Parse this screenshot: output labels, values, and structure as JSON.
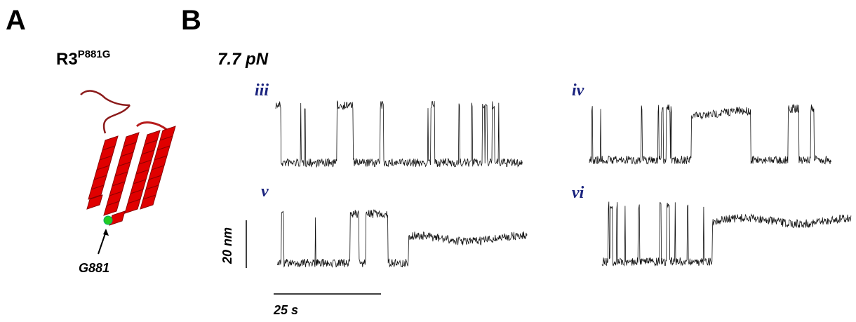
{
  "panel_a": {
    "label": "A",
    "protein": "R3",
    "mutation": "P881G",
    "residue": "G881"
  },
  "panel_b": {
    "label": "B",
    "force": "7.7 pN",
    "trace_labels": [
      "iii",
      "iv",
      "v",
      "vi"
    ],
    "scale_y": "20 nm",
    "scale_x": "25 s"
  }
}
